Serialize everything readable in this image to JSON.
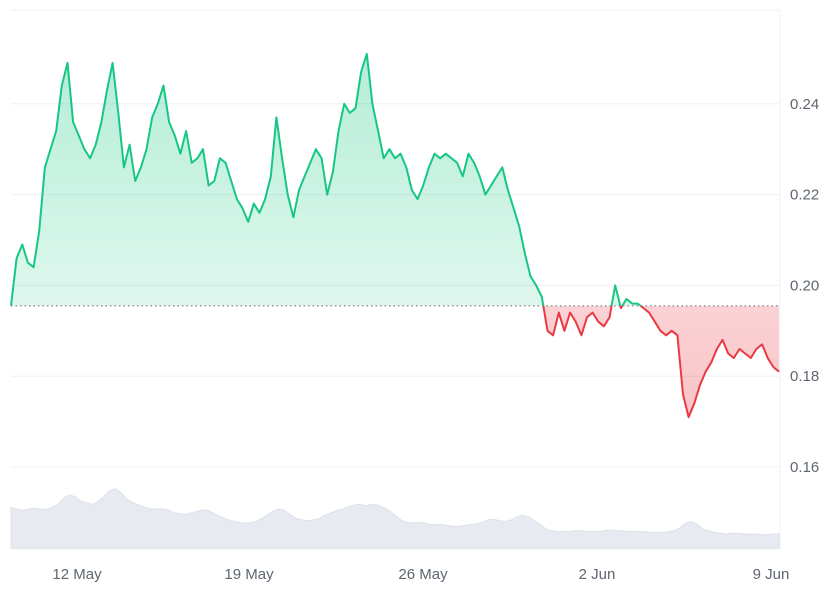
{
  "chart_data": {
    "type": "area",
    "title": "",
    "xlabel": "",
    "ylabel": "",
    "baseline": 0.1955,
    "ylim": [
      0.14,
      0.26
    ],
    "y_ticks": [
      "0.24",
      "0.22",
      "0.20",
      "0.18",
      "0.16"
    ],
    "x_ticks": [
      "12 May",
      "19 May",
      "26 May",
      "2 Jun",
      "9 Jun"
    ],
    "colors": {
      "above": "#16c784",
      "below": "#ea3943",
      "volume": "#e7eaf0",
      "grid": "#eef0f3",
      "baseline": "#8a8f98"
    },
    "series": [
      {
        "values": [
          0.1955,
          0.206,
          0.209,
          0.205,
          0.204,
          0.212,
          0.226,
          0.23,
          0.234,
          0.244,
          0.249,
          0.236,
          0.233,
          0.23,
          0.228,
          0.231,
          0.236,
          0.243,
          0.249,
          0.238,
          0.226,
          0.231,
          0.223,
          0.226,
          0.23,
          0.237,
          0.24,
          0.244,
          0.236,
          0.233,
          0.229,
          0.234,
          0.227,
          0.228,
          0.23,
          0.222,
          0.223,
          0.228,
          0.227,
          0.223,
          0.219,
          0.217,
          0.214,
          0.218,
          0.216,
          0.219,
          0.224,
          0.237,
          0.228,
          0.22,
          0.215,
          0.221,
          0.224,
          0.227,
          0.23,
          0.228,
          0.22,
          0.225,
          0.234,
          0.24,
          0.238,
          0.239,
          0.247,
          0.251,
          0.24,
          0.234,
          0.228,
          0.23,
          0.228,
          0.229,
          0.226,
          0.221,
          0.219,
          0.222,
          0.226,
          0.229,
          0.228,
          0.229,
          0.228,
          0.227,
          0.224,
          0.229,
          0.227,
          0.224,
          0.22,
          0.222,
          0.224,
          0.226,
          0.221,
          0.217,
          0.213,
          0.207,
          0.202,
          0.2,
          0.1975,
          0.19,
          0.189,
          0.194,
          0.19,
          0.194,
          0.192,
          0.189,
          0.193,
          0.194,
          0.192,
          0.191,
          0.193,
          0.2,
          0.195,
          0.197,
          0.196,
          0.196,
          0.195,
          0.194,
          0.192,
          0.19,
          0.189,
          0.19,
          0.189,
          0.176,
          0.171,
          0.174,
          0.178,
          0.181,
          0.183,
          0.186,
          0.188,
          0.185,
          0.184,
          0.186,
          0.185,
          0.184,
          0.186,
          0.187,
          0.184,
          0.182,
          0.181
        ]
      }
    ],
    "volume": [
      0.52,
      0.5,
      0.48,
      0.5,
      0.51,
      0.5,
      0.49,
      0.52,
      0.55,
      0.64,
      0.68,
      0.66,
      0.6,
      0.58,
      0.56,
      0.6,
      0.66,
      0.74,
      0.76,
      0.7,
      0.62,
      0.58,
      0.55,
      0.52,
      0.5,
      0.5,
      0.5,
      0.49,
      0.45,
      0.44,
      0.43,
      0.45,
      0.47,
      0.49,
      0.48,
      0.44,
      0.4,
      0.37,
      0.35,
      0.33,
      0.32,
      0.32,
      0.34,
      0.37,
      0.42,
      0.47,
      0.5,
      0.48,
      0.43,
      0.38,
      0.36,
      0.35,
      0.36,
      0.38,
      0.42,
      0.45,
      0.48,
      0.5,
      0.53,
      0.55,
      0.56,
      0.54,
      0.56,
      0.55,
      0.52,
      0.48,
      0.42,
      0.36,
      0.33,
      0.32,
      0.33,
      0.32,
      0.3,
      0.3,
      0.3,
      0.29,
      0.28,
      0.28,
      0.29,
      0.3,
      0.31,
      0.33,
      0.36,
      0.37,
      0.35,
      0.34,
      0.36,
      0.4,
      0.42,
      0.4,
      0.35,
      0.3,
      0.24,
      0.22,
      0.21,
      0.21,
      0.21,
      0.22,
      0.22,
      0.21,
      0.21,
      0.21,
      0.22,
      0.23,
      0.22,
      0.22,
      0.21,
      0.21,
      0.21,
      0.21,
      0.2,
      0.2,
      0.2,
      0.21,
      0.22,
      0.26,
      0.32,
      0.34,
      0.3,
      0.24,
      0.22,
      0.2,
      0.19,
      0.18,
      0.19,
      0.19,
      0.18,
      0.18,
      0.18,
      0.17,
      0.17,
      0.18,
      0.18
    ]
  }
}
